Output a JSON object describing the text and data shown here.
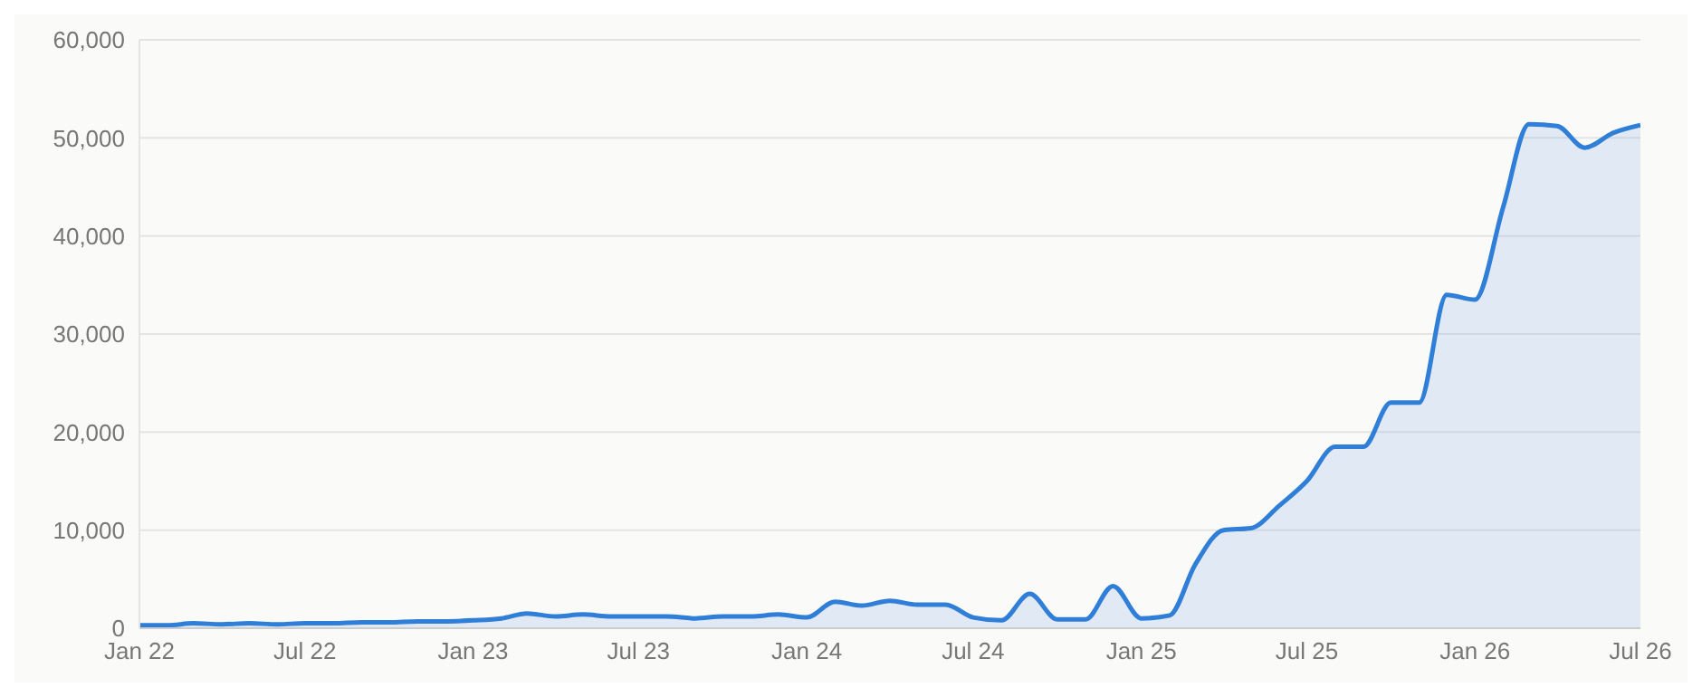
{
  "chart_data": {
    "type": "area",
    "x": [
      "2022-01",
      "2022-02",
      "2022-03",
      "2022-04",
      "2022-05",
      "2022-06",
      "2022-07",
      "2022-08",
      "2022-09",
      "2022-10",
      "2022-11",
      "2022-12",
      "2023-01",
      "2023-02",
      "2023-03",
      "2023-04",
      "2023-05",
      "2023-06",
      "2023-07",
      "2023-08",
      "2023-09",
      "2023-10",
      "2023-11",
      "2023-12",
      "2024-01",
      "2024-02",
      "2024-03",
      "2024-04",
      "2024-05",
      "2024-06",
      "2024-07",
      "2024-08",
      "2024-09",
      "2024-10",
      "2024-11",
      "2024-12",
      "2025-01",
      "2025-02",
      "2025-03",
      "2025-04",
      "2025-05",
      "2025-06",
      "2025-07",
      "2025-08",
      "2025-09",
      "2025-10",
      "2025-11",
      "2025-12",
      "2026-01",
      "2026-02",
      "2026-03",
      "2026-04",
      "2026-05",
      "2026-06",
      "2026-07"
    ],
    "series": [
      {
        "color": "#2f7ed8",
        "values": [
          300,
          300,
          500,
          400,
          500,
          400,
          500,
          500,
          600,
          600,
          700,
          700,
          800,
          1000,
          1500,
          1200,
          1400,
          1200,
          1200,
          1200,
          1000,
          1200,
          1200,
          1400,
          1100,
          2700,
          2300,
          2800,
          2400,
          2400,
          1100,
          800,
          3500,
          900,
          900,
          4300,
          1000,
          1300,
          6500,
          10000,
          10200,
          12500,
          15000,
          18500,
          18500,
          23000,
          23000,
          34000,
          33500,
          43000,
          51400,
          51200,
          49000,
          50500,
          51300
        ]
      }
    ],
    "xlim": [
      "2022-01",
      "2026-07"
    ],
    "xticks": [
      {
        "value": "2022-01",
        "label": "Jan 22"
      },
      {
        "value": "2022-07",
        "label": "Jul 22"
      },
      {
        "value": "2023-01",
        "label": "Jan 23"
      },
      {
        "value": "2023-07",
        "label": "Jul 23"
      },
      {
        "value": "2024-01",
        "label": "Jan 24"
      },
      {
        "value": "2024-07",
        "label": "Jul 24"
      },
      {
        "value": "2025-01",
        "label": "Jan 25"
      },
      {
        "value": "2025-07",
        "label": "Jul 25"
      },
      {
        "value": "2026-01",
        "label": "Jan 26"
      },
      {
        "value": "2026-07",
        "label": "Jul 26"
      }
    ],
    "ylim": [
      0,
      60000
    ],
    "yticks": [
      {
        "value": 0,
        "label": "0"
      },
      {
        "value": 10000,
        "label": "10,000"
      },
      {
        "value": 20000,
        "label": "20,000"
      },
      {
        "value": 30000,
        "label": "30,000"
      },
      {
        "value": 40000,
        "label": "40,000"
      },
      {
        "value": 50000,
        "label": "50,000"
      },
      {
        "value": 60000,
        "label": "60,000"
      }
    ],
    "grid": "y"
  }
}
